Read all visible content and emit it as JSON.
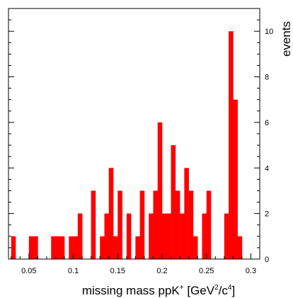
{
  "chart_data": {
    "type": "bar",
    "x_edges_start": 0.03,
    "bin_width": 0.005,
    "values": [
      1,
      0,
      0,
      0,
      1,
      1,
      0,
      0,
      0,
      1,
      1,
      1,
      0,
      1,
      1,
      2,
      0,
      0,
      3,
      0,
      1,
      2,
      4,
      1,
      3,
      0,
      2,
      0,
      1,
      3,
      0,
      2,
      3,
      6,
      2,
      2,
      5,
      3,
      2,
      4,
      3,
      1,
      0,
      2,
      3,
      0,
      0,
      0,
      2,
      10,
      7,
      1
    ],
    "xlim": [
      0.027,
      0.31
    ],
    "ylim": [
      0,
      11
    ],
    "x_ticks": [
      "0.05",
      "0.1",
      "0.15",
      "0.2",
      "0.25",
      "0.3"
    ],
    "x_tick_values": [
      0.05,
      0.1,
      0.15,
      0.2,
      0.25,
      0.3
    ],
    "y_ticks": [
      "0",
      "2",
      "4",
      "6",
      "8",
      "10"
    ],
    "y_tick_values": [
      0,
      2,
      4,
      6,
      8,
      10
    ],
    "xlabel_main": "missing mass ppK",
    "xlabel_sup1": "+",
    "xlabel_mid": " [GeV",
    "xlabel_sup2": "2",
    "xlabel_mid2": "/c",
    "xlabel_sup3": "4",
    "xlabel_end": "]",
    "ylabel": "events",
    "bar_color": "#ff0000"
  }
}
